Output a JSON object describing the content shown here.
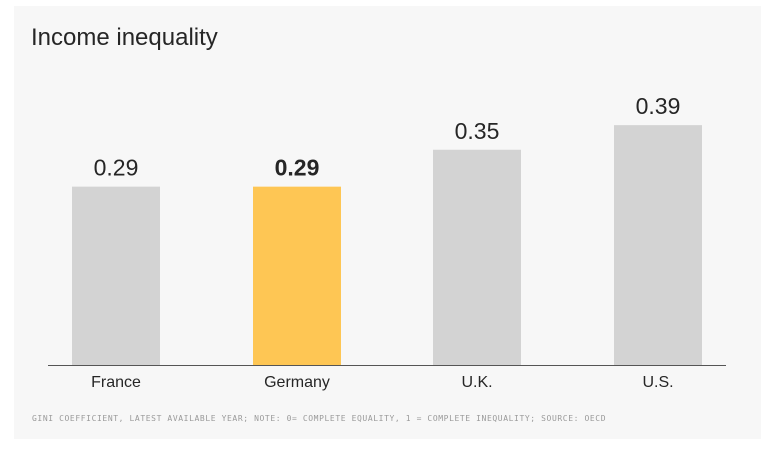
{
  "title": "Income inequality",
  "footnote": "GINI COEFFICIENT, LATEST AVAILABLE YEAR; NOTE: 0= COMPLETE EQUALITY, 1 = COMPLETE INEQUALITY; SOURCE: OECD",
  "colors": {
    "bar_default": "#d3d3d3",
    "bar_highlight": "#fec654",
    "axis": "#555555",
    "text": "#262626"
  },
  "chart_data": {
    "type": "bar",
    "title": "Income inequality",
    "xlabel": "",
    "ylabel": "",
    "ylim": [
      0,
      0.45
    ],
    "grid": false,
    "categories": [
      "France",
      "Germany",
      "U.K.",
      "U.S."
    ],
    "values": [
      0.29,
      0.29,
      0.35,
      0.39
    ],
    "value_labels": [
      "0.29",
      "0.29",
      "0.35",
      "0.39"
    ],
    "highlight": "Germany"
  }
}
